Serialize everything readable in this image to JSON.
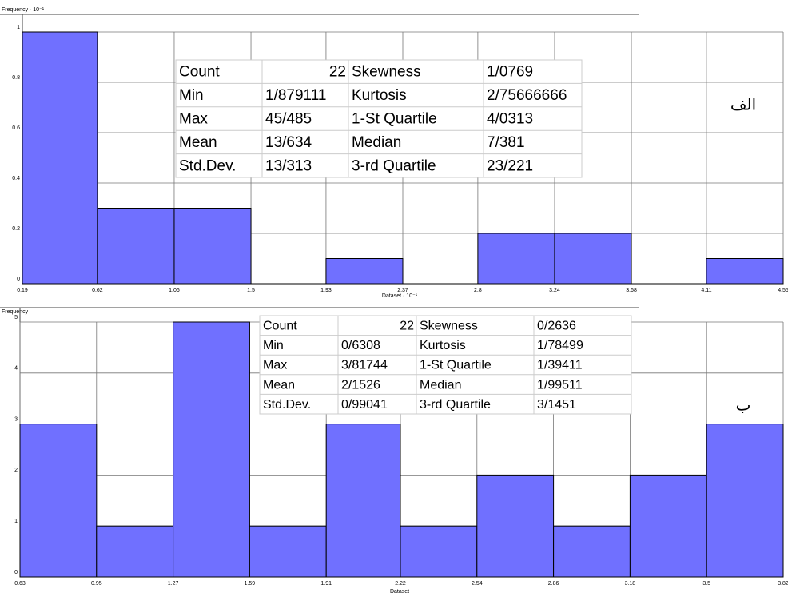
{
  "chart_data": [
    {
      "type": "histogram",
      "ylabel": "Frequency · 10⁻¹",
      "xlabel": "Dataset · 10⁻¹",
      "tag": "الف",
      "bins": [
        0.19,
        0.62,
        1.06,
        1.5,
        1.93,
        2.37,
        2.8,
        3.24,
        3.68,
        4.11,
        4.55
      ],
      "counts": [
        1,
        0.3,
        0.3,
        0,
        0.1,
        0,
        0.2,
        0.2,
        0,
        0.1
      ],
      "color": "#7070ff",
      "xlim": [
        0.19,
        4.55
      ],
      "ylim": [
        0,
        1
      ],
      "yticks": [
        0,
        0.2,
        0.4,
        0.6,
        0.8,
        1
      ],
      "grid": true,
      "stats": [
        [
          "Count",
          22,
          "Skewness",
          "1/0769"
        ],
        [
          "Min",
          "1/879111",
          "Kurtosis",
          "2/75666666"
        ],
        [
          "Max",
          "45/485",
          "1-St Quartile",
          "4/0313"
        ],
        [
          "Mean",
          "13/634",
          "Median",
          "7/381"
        ],
        [
          "Std.Dev.",
          "13/313",
          "3-rd Quartile",
          "23/221"
        ]
      ]
    },
    {
      "type": "histogram",
      "ylabel": "Frequency",
      "xlabel": "Dataset",
      "tag": "ب",
      "bins": [
        0.63,
        0.95,
        1.27,
        1.59,
        1.91,
        2.22,
        2.54,
        2.86,
        3.18,
        3.5,
        3.82
      ],
      "counts": [
        3,
        1,
        5,
        1,
        3,
        1,
        2,
        1,
        2,
        3
      ],
      "color": "#7070ff",
      "xlim": [
        0.63,
        3.82
      ],
      "ylim": [
        0,
        5
      ],
      "yticks": [
        0,
        1,
        2,
        3,
        4,
        5
      ],
      "grid": true,
      "stats": [
        [
          "Count",
          22,
          "Skewness",
          "0/2636"
        ],
        [
          "Min",
          "0/6308",
          "Kurtosis",
          "1/78499"
        ],
        [
          "Max",
          "3/81744",
          "1-St Quartile",
          "1/39411"
        ],
        [
          "Mean",
          "2/1526",
          "Median",
          "1/99511"
        ],
        [
          "Std.Dev.",
          "0/99041",
          "3-rd Quartile",
          "3/1451"
        ]
      ]
    }
  ]
}
